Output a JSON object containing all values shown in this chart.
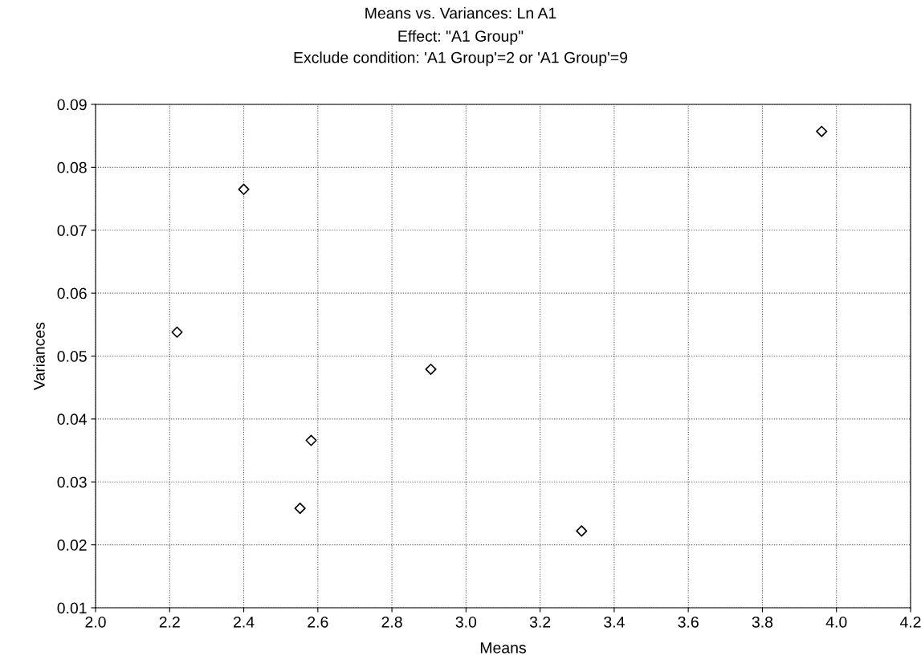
{
  "chart_data": {
    "type": "scatter",
    "title": "Means vs. Variances: Ln A1",
    "subtitle": "Effect: \"A1 Group\"\nExclude condition: 'A1 Group'=2 or 'A1 Group'=9",
    "xlabel": "Means",
    "ylabel": "Variances",
    "series": [
      {
        "color": "#000000",
        "x": [
          2.22,
          2.4,
          2.582,
          2.552,
          2.905,
          3.312,
          3.96
        ],
        "values": [
          0.0538,
          0.0765,
          0.0366,
          0.0258,
          0.0479,
          0.0222,
          0.0857
        ]
      }
    ],
    "xlim": [
      2.0,
      4.2
    ],
    "xticks": [
      {
        "value": 2.0,
        "label": "2.0"
      },
      2.2,
      2.4,
      2.6,
      2.8,
      {
        "value": 3.0,
        "label": "3.0"
      },
      3.2,
      3.4,
      3.6,
      3.8,
      {
        "value": 4.0,
        "label": "4.0"
      },
      4.2
    ],
    "ylim": [
      0.01,
      0.09
    ],
    "yticks": [
      0.01,
      0.02,
      0.03,
      0.04,
      0.05,
      0.06,
      0.07,
      0.08,
      0.09
    ],
    "grid": true,
    "marker": "diamond"
  }
}
